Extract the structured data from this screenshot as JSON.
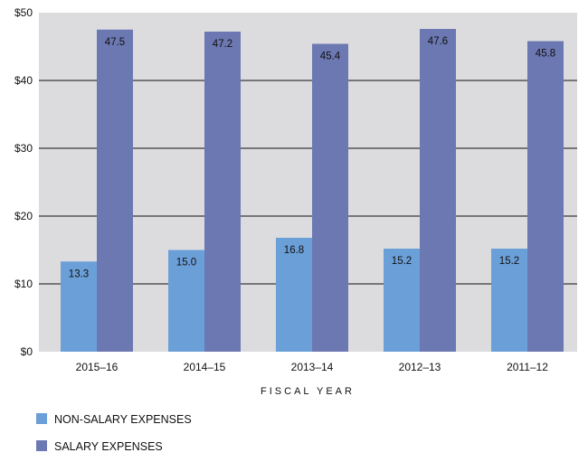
{
  "chart_data": {
    "type": "bar",
    "categories": [
      "2015–16",
      "2014–15",
      "2013–14",
      "2012–13",
      "2011–12"
    ],
    "series": [
      {
        "name": "NON-SALARY EXPENSES",
        "values": [
          13.3,
          15.0,
          16.8,
          15.2,
          15.2
        ],
        "color": "#6b9fd8"
      },
      {
        "name": "SALARY EXPENSES",
        "values": [
          47.5,
          47.2,
          45.4,
          47.6,
          45.8
        ],
        "color": "#6c78b2"
      }
    ],
    "data_labels": [
      [
        "13.3",
        "15.0",
        "16.8",
        "15.2",
        "15.2"
      ],
      [
        "47.5",
        "47.2",
        "45.4",
        "47.6",
        "45.8"
      ]
    ],
    "yticks": [
      0,
      10,
      20,
      30,
      40,
      50
    ],
    "ytick_labels": [
      "$0",
      "$10",
      "$20",
      "$30",
      "$40",
      "$50"
    ],
    "ylim": [
      0,
      50
    ],
    "xlabel": "FISCAL YEAR",
    "ylabel": "",
    "title": "",
    "grid": true,
    "plot_background": "#dcdcdf",
    "legend_position": "bottom-left"
  }
}
